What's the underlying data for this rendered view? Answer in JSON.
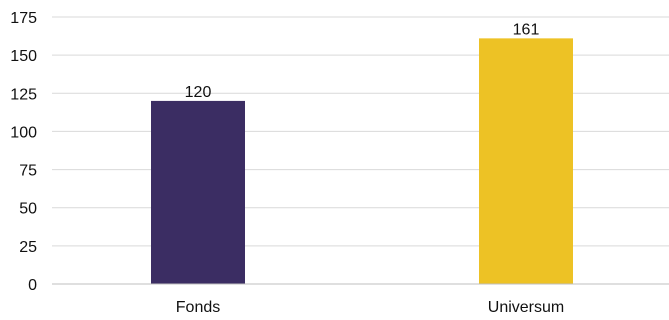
{
  "chart_data": {
    "type": "bar",
    "categories": [
      "Fonds",
      "Universum"
    ],
    "values": [
      120,
      161
    ],
    "colors": [
      "#3b2d63",
      "#edc225"
    ],
    "ylim": [
      0,
      175
    ],
    "yticks": [
      0,
      25,
      50,
      75,
      100,
      125,
      150,
      175
    ],
    "grid": true,
    "data_labels": true,
    "gridline_color": "#d9d9d9"
  }
}
